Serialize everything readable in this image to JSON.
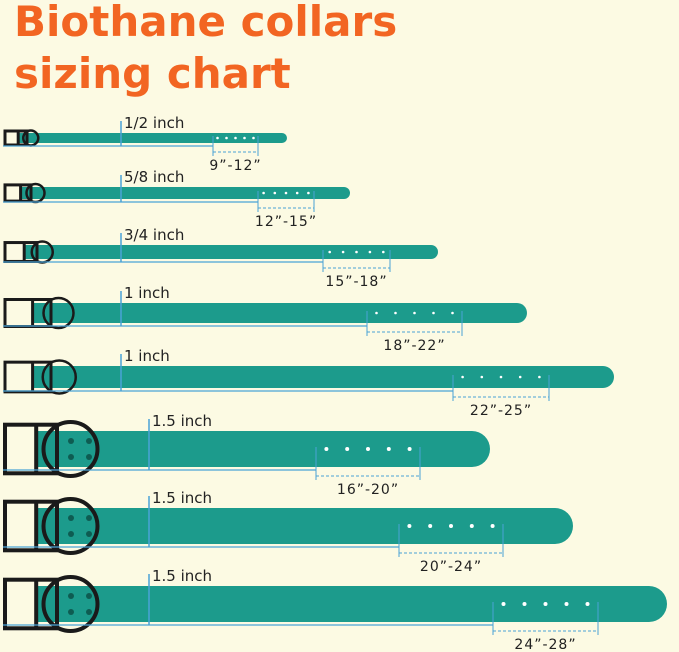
{
  "title": [
    "Biothane collars",
    "sizing chart"
  ],
  "collars": [
    {
      "width": "1/2 inch",
      "range": "9”-12”"
    },
    {
      "width": "5/8 inch",
      "range": "12”-15”"
    },
    {
      "width": "3/4 inch",
      "range": "15”-18”"
    },
    {
      "width": "1 inch",
      "range": "18”-22”"
    },
    {
      "width": "1 inch",
      "range": "22”-25”"
    },
    {
      "width": "1.5 inch",
      "range": "16”-20”"
    },
    {
      "width": "1.5 inch",
      "range": "20”-24”"
    },
    {
      "width": "1.5 inch",
      "range": "24”-28”"
    }
  ]
}
